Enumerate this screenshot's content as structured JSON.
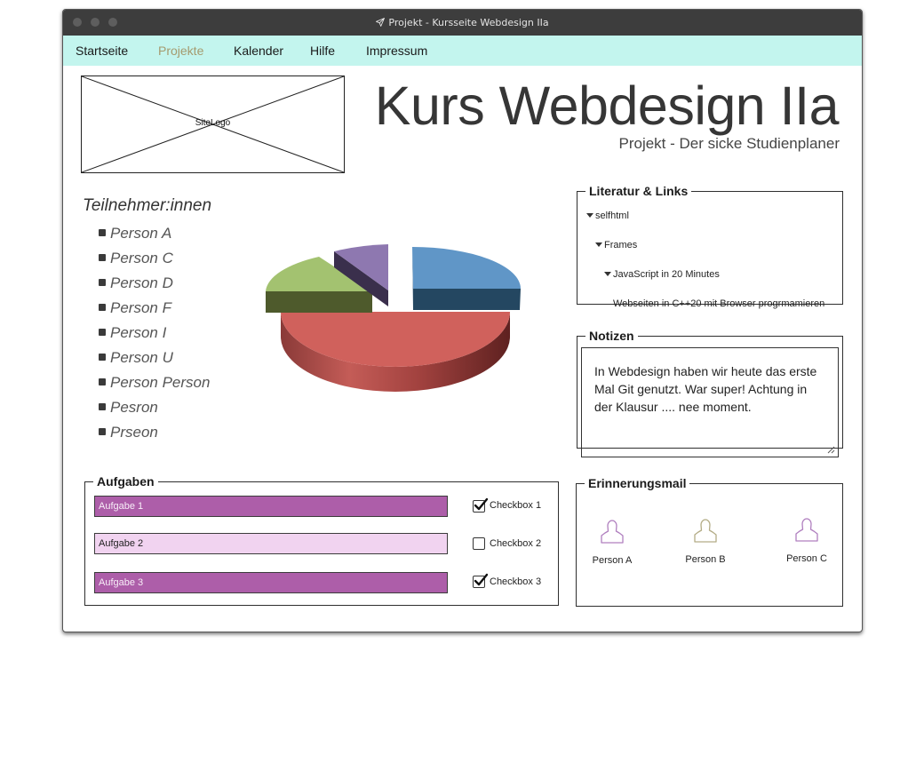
{
  "window": {
    "title": "Projekt - Kursseite Webdesign IIa",
    "title_icon": "paper-plane-icon"
  },
  "menu": {
    "items": [
      "Startseite",
      "Projekte",
      "Kalender",
      "Hilfe",
      "Impressum"
    ],
    "active": "Projekte",
    "background": "#c3f5ee",
    "active_color": "#a59a6e"
  },
  "logo": {
    "label": "SiteLogo"
  },
  "header": {
    "title": "Kurs Webdesign IIa",
    "subtitle": "Projekt - Der sicke Studienplaner"
  },
  "participants": {
    "title": "Teilnehmer:innen",
    "list": [
      "Person A",
      "Person C",
      "Person D",
      "Person F",
      "Person I",
      "Person U",
      "Person Person",
      "Pesron",
      "Prseon"
    ]
  },
  "pie_chart": {
    "type": "pie",
    "style": "3d-exploded",
    "slice_colors": [
      "#6096c7",
      "#d0615c",
      "#a3c270",
      "#8e78b0"
    ]
  },
  "literature": {
    "legend": "Literatur & Links",
    "items": [
      {
        "label": "selfhtml",
        "expanded": true
      },
      {
        "label": "Frames",
        "expanded": true
      },
      {
        "label": "JavaScript in 20 Minutes",
        "expanded": true
      },
      {
        "label": "Webseiten in C++20 mit Browser progrmamieren",
        "expanded": false
      }
    ]
  },
  "notes": {
    "legend": "Notizen",
    "text": "In Webdesign haben wir heute das erste Mal Git genutzt. War super! Achtung in der Klausur .... nee moment."
  },
  "tasks": {
    "legend": "Aufgaben",
    "items": [
      {
        "label": "Aufgabe 1",
        "checkbox": "Checkbox 1",
        "checked": true
      },
      {
        "label": "Aufgabe 2",
        "checkbox": "Checkbox 2",
        "checked": false
      },
      {
        "label": "Aufgabe 3",
        "checkbox": "Checkbox 3",
        "checked": true
      }
    ],
    "done_color": "#ad5ea9",
    "todo_color": "#f1d3f0"
  },
  "reminder": {
    "legend": "Erinnerungsmail",
    "persons": [
      {
        "label": "Person A",
        "icon": "user-icon",
        "color": "#b07fbf"
      },
      {
        "label": "Person B",
        "icon": "user-icon",
        "color": "#b3ac86"
      },
      {
        "label": "Person C",
        "icon": "user-icon",
        "color": "#b07fbf"
      }
    ]
  }
}
